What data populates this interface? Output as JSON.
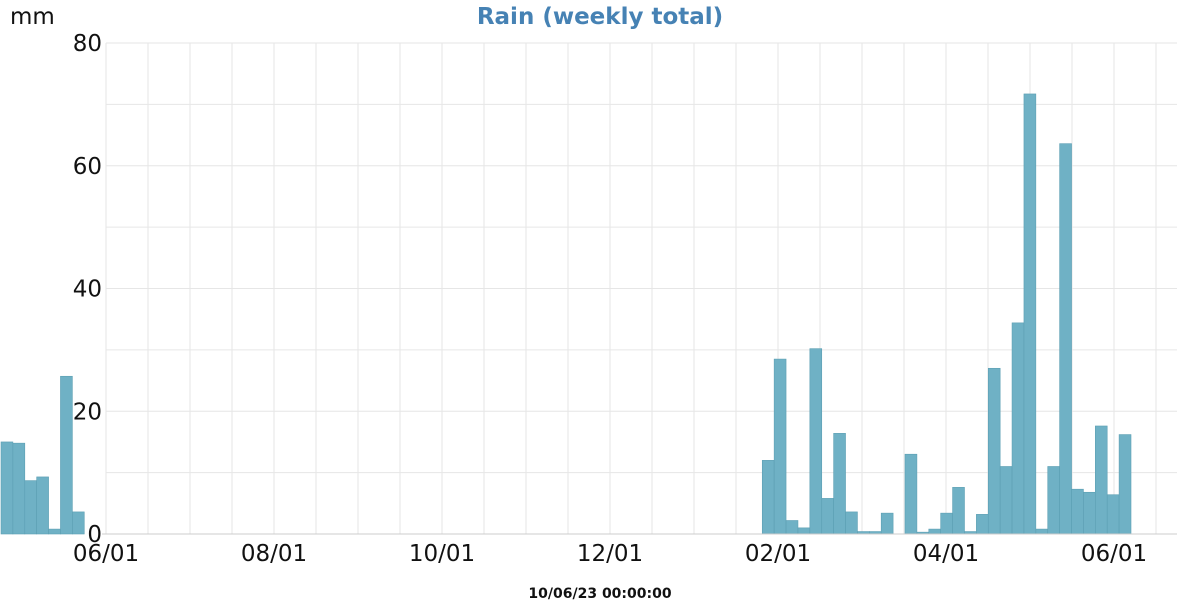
{
  "chart_data": {
    "type": "bar",
    "title": "Rain (weekly total)",
    "ylabel": "mm",
    "xlabel": "",
    "timestamp": "10/06/23 00:00:00",
    "ylim": [
      0,
      80
    ],
    "yticks": [
      0,
      20,
      40,
      60,
      80
    ],
    "x_tick_labels": [
      "06/01",
      "08/01",
      "10/01",
      "12/01",
      "02/01",
      "04/01",
      "06/01"
    ],
    "grid": true,
    "color": "#6fb1c5",
    "title_color": "#4682b4",
    "series": [
      {
        "values": [
          15.0,
          14.8,
          8.7,
          9.3,
          0.8,
          25.7,
          3.6,
          0.0,
          0.0,
          0.0,
          0.0,
          0.0,
          0.0,
          0.0,
          0.0,
          0.0,
          0.0,
          0.0,
          0.0,
          0.0,
          0.0,
          0.0,
          0.0,
          0.0,
          0.0,
          0.0,
          0.0,
          0.0,
          0.0,
          0.0,
          0.0,
          0.0,
          0.0,
          0.0,
          0.0,
          0.0,
          0.0,
          0.0,
          0.0,
          0.0,
          0.0,
          0.0,
          0.0,
          0.0,
          0.0,
          0.0,
          0.0,
          0.0,
          0.0,
          0.0,
          0.0,
          0.0,
          0.0,
          0.0,
          0.0,
          0.0,
          0.0,
          0.0,
          0.0,
          0.0,
          0.0,
          0.0,
          0.0,
          0.0,
          12.0,
          28.5,
          2.2,
          1.0,
          30.2,
          5.8,
          16.4,
          3.6,
          0.4,
          0.4,
          3.4,
          0.0,
          13.0,
          0.3,
          0.8,
          3.4,
          7.6,
          0.4,
          3.2,
          27.0,
          11.0,
          34.4,
          71.7,
          0.8,
          11.0,
          63.6,
          7.3,
          6.8,
          17.6,
          6.4,
          16.2
        ]
      }
    ]
  }
}
